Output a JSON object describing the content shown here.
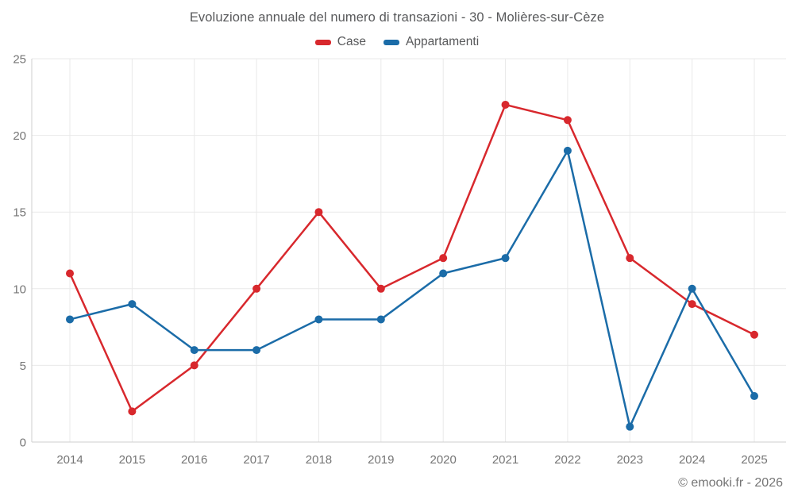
{
  "chart_data": {
    "type": "line",
    "title": "Evoluzione annuale del numero di transazioni - 30 - Molières-sur-Cèze",
    "categories": [
      "2014",
      "2015",
      "2016",
      "2017",
      "2018",
      "2019",
      "2020",
      "2021",
      "2022",
      "2023",
      "2024",
      "2025"
    ],
    "series": [
      {
        "name": "Case",
        "color": "#d8282d",
        "values": [
          11,
          2,
          5,
          10,
          15,
          10,
          12,
          22,
          21,
          12,
          9,
          7
        ]
      },
      {
        "name": "Appartamenti",
        "color": "#1b6ca8",
        "values": [
          8,
          9,
          6,
          6,
          8,
          8,
          11,
          12,
          19,
          1,
          10,
          3
        ]
      }
    ],
    "xlabel": "",
    "ylabel": "",
    "ylim": [
      0,
      25
    ],
    "ytick_step": 5,
    "yticks": [
      0,
      5,
      10,
      15,
      20,
      25
    ],
    "grid": true,
    "legend_position": "top",
    "grid_color": "#e9e9e9",
    "axis_color": "#cfcfcf",
    "tick_text_color": "#757575"
  },
  "footer": {
    "copyright": "© emooki.fr - 2026"
  }
}
